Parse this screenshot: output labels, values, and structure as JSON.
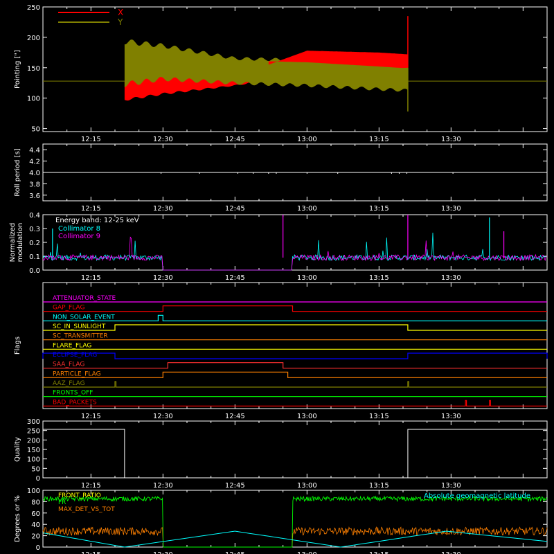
{
  "time_axis": {
    "tick_labels": [
      "12:15",
      "12:30",
      "12:45",
      "13:00",
      "13:15",
      "13:30"
    ]
  },
  "chart_data": [
    {
      "id": "pointing",
      "type": "line",
      "ylabel": "Pointing [\"]",
      "ylim": [
        45,
        250
      ],
      "yticks": [
        50,
        100,
        150,
        200,
        250
      ],
      "legend_position": "top-left",
      "series": [
        {
          "name": "X",
          "color": "#ff0000"
        },
        {
          "name": "Y",
          "color": "#808000"
        }
      ],
      "flat_level": 128,
      "active_window": [
        "12:22",
        "13:21"
      ],
      "x_envelope": {
        "time": [
          "12:22",
          "12:30",
          "12:45",
          "13:00",
          "13:15",
          "13:21"
        ],
        "low": [
          95,
          105,
          120,
          138,
          148,
          150
        ],
        "high": [
          130,
          138,
          135,
          178,
          175,
          172
        ]
      },
      "y_envelope": {
        "time": [
          "12:22",
          "12:30",
          "12:45",
          "13:00",
          "13:15",
          "13:21"
        ],
        "low": [
          118,
          128,
          122,
          118,
          112,
          110
        ],
        "high": [
          198,
          190,
          168,
          165,
          158,
          155
        ]
      },
      "spike": {
        "time": "13:21",
        "low": 78,
        "high": 235
      }
    },
    {
      "id": "roll",
      "type": "line",
      "ylabel": "Roll period [s]",
      "ylim": [
        3.5,
        4.5
      ],
      "yticks": [
        3.6,
        3.8,
        4.0,
        4.2,
        4.4
      ],
      "series": [
        {
          "name": "",
          "color": "#ffffff",
          "level": 4.0
        }
      ]
    },
    {
      "id": "modulation",
      "type": "line",
      "ylabel": [
        "Normalized",
        "modulation"
      ],
      "ylim": [
        0,
        0.4
      ],
      "yticks": [
        0.0,
        0.1,
        0.2,
        0.3,
        0.4
      ],
      "legend_position": "top-left",
      "legend_title": "Energy band: 12-25 keV",
      "series": [
        {
          "name": "Collimator 8",
          "color": "#00ffff"
        },
        {
          "name": "Collimator 9",
          "color": "#ff00ff"
        }
      ],
      "baseline": 0.09,
      "gap": [
        "12:30",
        "12:57"
      ]
    },
    {
      "id": "flags",
      "type": "line",
      "ylabel": "Flags",
      "flags": [
        {
          "name": "ATTENUATOR_STATE",
          "color": "#ff00ff",
          "high": []
        },
        {
          "name": "GAP_FLAG",
          "color": "#ff0000",
          "high": [
            [
              "12:30",
              "12:57"
            ]
          ]
        },
        {
          "name": "NON_SOLAR_EVENT",
          "color": "#00ffff",
          "high": [
            [
              "12:29",
              "12:30"
            ]
          ]
        },
        {
          "name": "SC_IN_SUNLIGHT",
          "color": "#ffff00",
          "high": [
            [
              "12:20",
              "13:21"
            ]
          ]
        },
        {
          "name": "SC_TRANSMITTER",
          "color": "#ff8000",
          "high": []
        },
        {
          "name": "FLARE_FLAG",
          "color": "#ffff00",
          "high": []
        },
        {
          "name": "ECLIPSE_FLAG",
          "color": "#0000ff",
          "high": [
            [
              "12:05",
              "12:20"
            ],
            [
              "13:21",
              "13:50"
            ]
          ]
        },
        {
          "name": "SAA_FLAG",
          "color": "#ff3030",
          "high": [
            [
              "12:31",
              "12:55"
            ]
          ]
        },
        {
          "name": "PARTICLE_FLAG",
          "color": "#ff8000",
          "high": [
            [
              "12:30",
              "12:56"
            ]
          ]
        },
        {
          "name": "AAZ_FLAG",
          "color": "#808000",
          "high": [
            [
              "12:20",
              "12:20"
            ],
            [
              "13:21",
              "13:21"
            ]
          ]
        },
        {
          "name": "FRONTS_OFF",
          "color": "#00ff00",
          "high": []
        },
        {
          "name": "BAD_PACKETS",
          "color": "#ff0000",
          "high": [
            [
              "13:33",
              "13:33"
            ],
            [
              "13:38",
              "13:38"
            ]
          ]
        }
      ]
    },
    {
      "id": "quality",
      "type": "line",
      "ylabel": "Quality",
      "ylim": [
        0,
        300
      ],
      "yticks": [
        0,
        50,
        100,
        150,
        200,
        250,
        300
      ],
      "series": [
        {
          "name": "",
          "color": "#ffffff",
          "steps": [
            [
              "12:05",
              256
            ],
            [
              "12:22",
              0
            ],
            [
              "13:21",
              256
            ],
            [
              "13:50",
              256
            ]
          ]
        }
      ]
    },
    {
      "id": "ratios",
      "type": "line",
      "ylabel": "Degrees or %",
      "ylim": [
        0,
        100
      ],
      "yticks": [
        0,
        20,
        40,
        60,
        80,
        100
      ],
      "legend_position": "top-left",
      "series": [
        {
          "name": "FRONT_RATIO",
          "color": "#ffff00"
        },
        {
          "name": "FR",
          "color": "#00ff00"
        },
        {
          "name": "MAX_DET_VS_TOT",
          "color": "#ff8000"
        },
        {
          "name": "Absolute geomagnetic latitude",
          "color": "#00ffff"
        }
      ],
      "front_level": 85,
      "max_det_level": 28,
      "gap": [
        "12:30",
        "12:57"
      ],
      "latitude": {
        "time": [
          "12:05",
          "12:22",
          "12:45",
          "13:07",
          "13:29",
          "13:50"
        ],
        "value": [
          25,
          0,
          28,
          0,
          28,
          10
        ]
      }
    }
  ]
}
